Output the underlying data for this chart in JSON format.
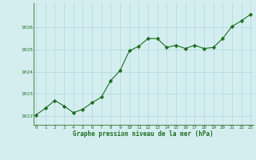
{
  "x": [
    0,
    1,
    2,
    3,
    4,
    5,
    6,
    7,
    8,
    9,
    10,
    11,
    12,
    13,
    14,
    15,
    16,
    17,
    18,
    19,
    20,
    21,
    22,
    23
  ],
  "y": [
    1022.05,
    1022.35,
    1022.7,
    1022.45,
    1022.15,
    1022.3,
    1022.6,
    1022.85,
    1023.6,
    1024.05,
    1024.95,
    1025.15,
    1025.5,
    1025.5,
    1025.1,
    1025.2,
    1025.05,
    1025.2,
    1025.05,
    1025.1,
    1025.5,
    1026.05,
    1026.3,
    1026.6
  ],
  "line_color": "#1f6e1f",
  "marker": "D",
  "marker_size": 2.2,
  "bg_color": "#d4eef0",
  "grid_color": "#b0d8da",
  "xlabel": "Graphe pression niveau de la mer (hPa)",
  "xlabel_color": "#1f6e1f",
  "tick_color": "#1f6e1f",
  "ylim": [
    1021.6,
    1027.1
  ],
  "yticks": [
    1022,
    1023,
    1024,
    1025,
    1026
  ],
  "xticks": [
    0,
    1,
    2,
    3,
    4,
    5,
    6,
    7,
    8,
    9,
    10,
    11,
    12,
    13,
    14,
    15,
    16,
    17,
    18,
    19,
    20,
    21,
    22,
    23
  ],
  "xlim": [
    -0.3,
    23.3
  ],
  "spine_color": "#5a8a5a"
}
